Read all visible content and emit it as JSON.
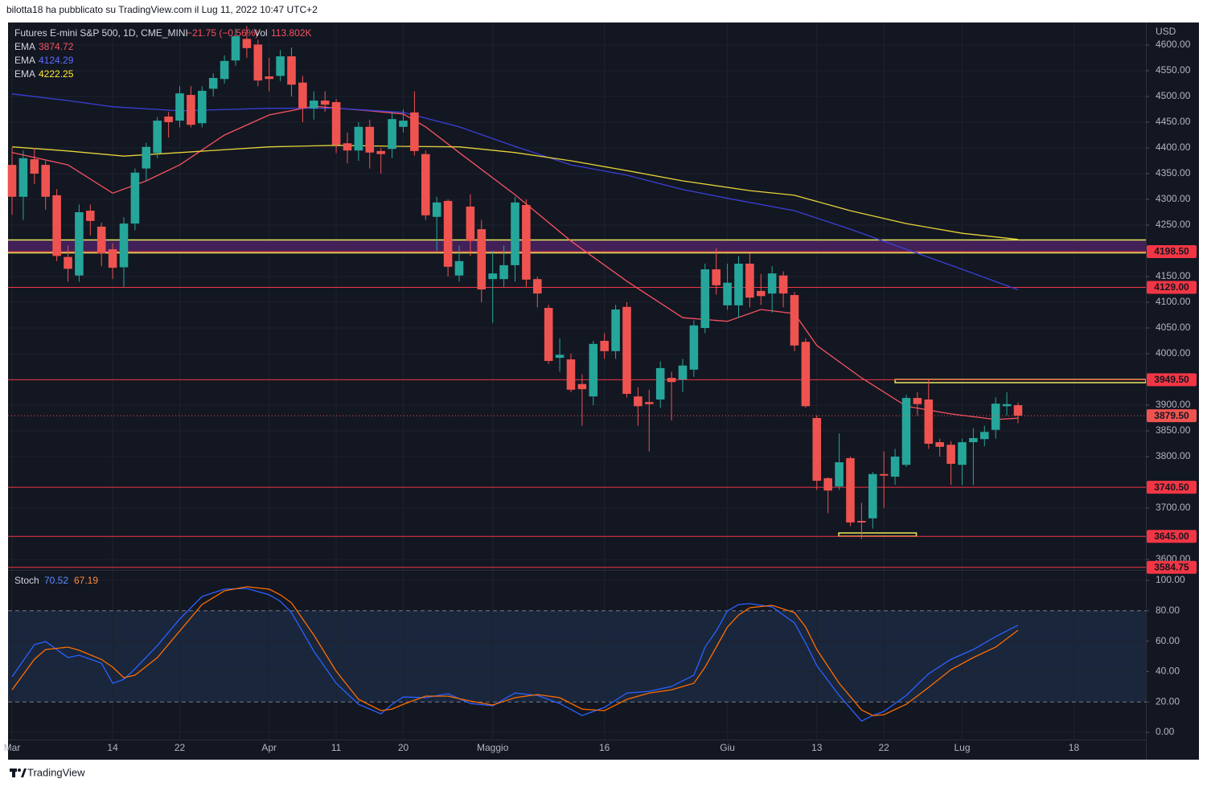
{
  "header": {
    "text": "bilotta18 ha pubblicato su TradingView.com il Lug 11, 2022 10:47 UTC+2"
  },
  "footer": {
    "brand": "TradingView"
  },
  "chart_data": [
    {
      "type": "candlestick",
      "title": "Futures E-mini S&P 500, 1D, CME_MINI",
      "change_label": "−21.75 (−0.56%)",
      "volume_name": "Vol",
      "volume_label": "113.802K",
      "y_axis_label": "USD",
      "up_color": "#26a69a",
      "down_color": "#ef5350",
      "x": [
        0,
        1,
        2,
        3,
        4,
        5,
        6,
        7,
        8,
        9,
        10,
        11,
        12,
        13,
        14,
        15,
        16,
        17,
        18,
        19,
        20,
        21,
        22,
        23,
        24,
        25,
        26,
        27,
        28,
        29,
        30,
        31,
        32,
        33,
        34,
        35,
        36,
        37,
        38,
        39,
        40,
        41,
        42,
        43,
        44,
        45,
        46,
        47,
        48,
        49,
        50,
        51,
        52,
        53,
        54,
        55,
        56,
        57,
        58,
        59,
        60,
        61,
        62,
        63,
        64,
        65,
        66,
        67,
        68,
        69,
        70,
        71,
        72,
        73,
        74,
        75,
        76,
        77,
        78,
        79,
        80,
        81,
        82,
        83,
        84,
        85,
        86,
        87,
        88,
        89,
        90
      ],
      "open": [
        4367,
        4305,
        4378,
        4367,
        4308,
        4188,
        4152,
        4278,
        4247,
        4203,
        4168,
        4253,
        4360,
        4390,
        4461,
        4453,
        4503,
        4448,
        4515,
        4534,
        4570,
        4612,
        4601,
        4539,
        4540,
        4578,
        4527,
        4477,
        4492,
        4489,
        4409,
        4395,
        4441,
        4394,
        4398,
        4441,
        4469,
        4388,
        4266,
        4297,
        4152,
        4286,
        4242,
        4145,
        4145,
        4172,
        4289,
        4145,
        4089,
        3992,
        3989,
        3941,
        3917,
        4025,
        4005,
        4091,
        3917,
        3906,
        3911,
        3953,
        3950,
        3969,
        4050,
        4164,
        4094,
        4094,
        4175,
        4122,
        4117,
        4152,
        4114,
        4023,
        3875,
        3758,
        3742,
        3797,
        3675,
        3680,
        3766,
        3761,
        3784,
        3914,
        3911,
        3828,
        3823,
        3784,
        3828,
        3834,
        3852,
        3898,
        3900
      ],
      "high": [
        4400,
        4395,
        4400,
        4375,
        4320,
        4210,
        4290,
        4290,
        4255,
        4215,
        4265,
        4360,
        4410,
        4460,
        4470,
        4520,
        4520,
        4520,
        4545,
        4580,
        4632,
        4637,
        4610,
        4575,
        4590,
        4595,
        4540,
        4510,
        4510,
        4495,
        4430,
        4450,
        4455,
        4400,
        4470,
        4475,
        4510,
        4395,
        4305,
        4300,
        4210,
        4310,
        4260,
        4200,
        4210,
        4305,
        4300,
        4150,
        4095,
        4030,
        4000,
        3960,
        4025,
        4040,
        4095,
        4100,
        3935,
        3930,
        3985,
        3965,
        3990,
        4065,
        4175,
        4205,
        4175,
        4190,
        4195,
        4155,
        4170,
        4160,
        4120,
        4030,
        3880,
        3760,
        3845,
        3800,
        3710,
        3770,
        3810,
        3815,
        3920,
        3925,
        3950,
        3835,
        3830,
        3835,
        3855,
        3860,
        3915,
        3925,
        3905
      ],
      "low": [
        4270,
        4260,
        4330,
        4280,
        4180,
        4140,
        4140,
        4230,
        4170,
        4145,
        4130,
        4240,
        4335,
        4380,
        4420,
        4440,
        4440,
        4440,
        4500,
        4525,
        4560,
        4575,
        4520,
        4510,
        4530,
        4500,
        4450,
        4455,
        4470,
        4390,
        4370,
        4375,
        4360,
        4350,
        4380,
        4430,
        4385,
        4260,
        4200,
        4150,
        4140,
        4190,
        4100,
        4060,
        4130,
        4140,
        4130,
        4090,
        3980,
        3965,
        3925,
        3860,
        3900,
        3990,
        3990,
        3915,
        3860,
        3810,
        3895,
        3870,
        3925,
        3955,
        4040,
        4115,
        4085,
        4070,
        4090,
        4095,
        4080,
        4090,
        4005,
        3895,
        3735,
        3690,
        3735,
        3665,
        3640,
        3660,
        3700,
        3745,
        3780,
        3880,
        3815,
        3800,
        3745,
        3745,
        3745,
        3820,
        3835,
        3880,
        3865
      ],
      "close": [
        4305,
        4380,
        4350,
        4305,
        4190,
        4165,
        4275,
        4258,
        4195,
        4167,
        4253,
        4352,
        4402,
        4453,
        4450,
        4506,
        4445,
        4511,
        4536,
        4569,
        4617,
        4594,
        4531,
        4534,
        4578,
        4523,
        4477,
        4492,
        4484,
        4406,
        4395,
        4441,
        4391,
        4388,
        4456,
        4453,
        4394,
        4269,
        4294,
        4169,
        4180,
        4219,
        4125,
        4156,
        4172,
        4294,
        4144,
        4117,
        3986,
        3998,
        3930,
        3931,
        4019,
        4005,
        4086,
        3922,
        3898,
        3902,
        3972,
        3945,
        3977,
        4055,
        4164,
        4133,
        4138,
        4175,
        4109,
        4112,
        4156,
        4117,
        4016,
        3898,
        3753,
        3734,
        3789,
        3672,
        3672,
        3766,
        3763,
        3800,
        3914,
        3902,
        3825,
        3819,
        3786,
        3828,
        3836,
        3848,
        3903,
        3902,
        3879.5
      ],
      "last_price_label": "3879.50",
      "lines": [
        {
          "name": "EMA",
          "color": "#f7525f",
          "x": [
            0,
            5,
            9,
            12,
            15,
            19,
            23,
            27,
            32,
            35,
            37,
            40,
            45,
            50,
            55,
            60,
            64,
            67,
            70,
            72,
            76,
            80,
            84,
            88,
            90
          ],
          "values": [
            4391,
            4367,
            4312,
            4336,
            4367,
            4425,
            4464,
            4481,
            4472,
            4466,
            4441,
            4391,
            4309,
            4219,
            4141,
            4070,
            4063,
            4086,
            4078,
            4016,
            3953,
            3898,
            3883,
            3872,
            3874.72
          ]
        },
        {
          "name": "EMA",
          "color": "#3a3fd6",
          "x": [
            0,
            5,
            9,
            15,
            23,
            29,
            35,
            40,
            45,
            50,
            55,
            60,
            64,
            70,
            75,
            80,
            85,
            90
          ],
          "values": [
            4505,
            4492,
            4480,
            4472,
            4477,
            4477,
            4469,
            4441,
            4403,
            4367,
            4347,
            4319,
            4302,
            4278,
            4242,
            4203,
            4164,
            4124.29
          ]
        },
        {
          "name": "EMA",
          "color": "#e6d23a",
          "x": [
            0,
            5,
            10,
            15,
            23,
            29,
            35,
            40,
            45,
            50,
            55,
            60,
            66,
            70,
            75,
            80,
            85,
            90
          ],
          "values": [
            4402,
            4394,
            4384,
            4391,
            4402,
            4405,
            4403,
            4402,
            4391,
            4375,
            4356,
            4336,
            4317,
            4308,
            4278,
            4253,
            4234,
            4222.25
          ]
        }
      ],
      "level_color": "#f23645",
      "levels": [
        {
          "value": 4198.5,
          "label": "4198.50"
        },
        {
          "value": 4129,
          "label": "4129.00"
        },
        {
          "value": 3949.5,
          "label": "3949.50"
        },
        {
          "value": 3740.5,
          "label": "3740.50"
        },
        {
          "value": 3645,
          "label": "3645.00"
        },
        {
          "value": 3584.75,
          "label": "3584.75"
        }
      ],
      "zones": [
        {
          "ylim": [
            4196,
            4221
          ],
          "color": "#4a2360",
          "border": "#e8e85a"
        }
      ],
      "boxes": [
        {
          "xlim": [
            79,
            101.44
          ],
          "ylim": [
            3943.75,
            3950
          ],
          "color": "#e8e85a"
        },
        {
          "xlim": [
            73.96,
            80.9
          ],
          "ylim": [
            3645.3,
            3651.6
          ],
          "color": "#e8e85a"
        }
      ],
      "xlim": [
        -0.36,
        101.44
      ],
      "ylim": [
        3580,
        4640
      ],
      "xticks": [
        {
          "value": 0,
          "label": "Mar"
        },
        {
          "value": 9,
          "label": "14"
        },
        {
          "value": 15,
          "label": "22"
        },
        {
          "value": 23,
          "label": "Apr"
        },
        {
          "value": 29,
          "label": "11"
        },
        {
          "value": 35,
          "label": "20"
        },
        {
          "value": 43,
          "label": "Maggio"
        },
        {
          "value": 53,
          "label": "16"
        },
        {
          "value": 64,
          "label": "Giu"
        },
        {
          "value": 72,
          "label": "13"
        },
        {
          "value": 78,
          "label": "22"
        },
        {
          "value": 85,
          "label": "Lug"
        },
        {
          "value": 95,
          "label": "18"
        }
      ],
      "yticks": [
        {
          "value": 3600,
          "label": "3600.00"
        },
        {
          "value": 3700,
          "label": "3700.00"
        },
        {
          "value": 3800,
          "label": "3800.00"
        },
        {
          "value": 3850,
          "label": "3850.00"
        },
        {
          "value": 3900,
          "label": "3900.00"
        },
        {
          "value": 4000,
          "label": "4000.00"
        },
        {
          "value": 4050,
          "label": "4050.00"
        },
        {
          "value": 4100,
          "label": "4100.00"
        },
        {
          "value": 4150,
          "label": "4150.00"
        },
        {
          "value": 4250,
          "label": "4250.00"
        },
        {
          "value": 4300,
          "label": "4300.00"
        },
        {
          "value": 4350,
          "label": "4350.00"
        },
        {
          "value": 4400,
          "label": "4400.00"
        },
        {
          "value": 4450,
          "label": "4450.00"
        },
        {
          "value": 4500,
          "label": "4500.00"
        },
        {
          "value": 4550,
          "label": "4550.00"
        },
        {
          "value": 4600,
          "label": "4600.00"
        }
      ],
      "grid": true
    },
    {
      "type": "line",
      "title": "Stoch",
      "x": [
        0,
        2,
        3,
        5,
        6,
        8,
        9,
        10,
        11,
        13,
        15,
        17,
        19,
        21,
        23,
        24,
        25,
        27,
        29,
        31,
        33,
        34,
        35,
        37,
        39,
        41,
        43,
        45,
        47,
        49,
        51,
        53,
        55,
        57,
        59,
        61,
        62,
        63,
        64,
        65,
        66,
        68,
        70,
        71,
        72,
        74,
        76,
        77,
        78,
        80,
        82,
        84,
        86,
        88,
        90
      ],
      "series": [
        {
          "color": "#2962ff",
          "values": [
            36.5,
            57.7,
            59.8,
            49.2,
            50.8,
            45.5,
            32.3,
            34.9,
            41.8,
            57.1,
            74.6,
            89.4,
            94.2,
            94.7,
            90.5,
            86.2,
            78.8,
            53.4,
            32.3,
            18.5,
            12.2,
            18.5,
            23.3,
            22.8,
            25.4,
            19.0,
            17.5,
            25.9,
            24.3,
            19.0,
            11.1,
            16.4,
            25.9,
            27.0,
            30.2,
            37.6,
            56.1,
            66.7,
            79.9,
            84.1,
            84.7,
            82.5,
            72.0,
            58.7,
            43.9,
            24.3,
            7.4,
            11.1,
            13.8,
            24.3,
            38.6,
            48.1,
            54.5,
            63.0,
            70.52
          ]
        },
        {
          "color": "#ff6d00",
          "values": [
            28.0,
            48.1,
            54.5,
            56.1,
            54.0,
            48.0,
            42.9,
            36.0,
            37.6,
            49.2,
            66.7,
            84.1,
            93.1,
            95.8,
            94.2,
            90.5,
            85.2,
            64.0,
            40.2,
            21.7,
            14.3,
            15.3,
            18.5,
            23.8,
            23.8,
            20.6,
            18.0,
            22.8,
            24.9,
            22.8,
            15.3,
            14.3,
            21.7,
            25.9,
            28.0,
            32.3,
            42.9,
            56.1,
            69.3,
            77.2,
            82.0,
            83.6,
            78.8,
            69.3,
            54.5,
            32.3,
            14.8,
            11.1,
            11.6,
            18.5,
            29.6,
            41.3,
            49.2,
            56.1,
            67.19
          ]
        }
      ],
      "bands": [
        20,
        80
      ],
      "band_color": "#1d2a44",
      "ylim": [
        -5,
        105
      ],
      "yticks": [
        {
          "value": 0,
          "label": "0.00"
        },
        {
          "value": 20,
          "label": "20.00"
        },
        {
          "value": 40,
          "label": "40.00"
        },
        {
          "value": 60,
          "label": "60.00"
        },
        {
          "value": 80,
          "label": "80.00"
        },
        {
          "value": 100,
          "label": "100.00"
        }
      ],
      "grid": true
    }
  ]
}
